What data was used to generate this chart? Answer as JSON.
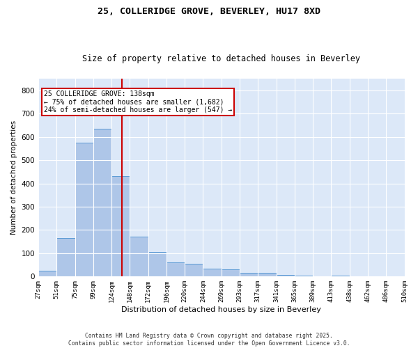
{
  "title": "25, COLLERIDGE GROVE, BEVERLEY, HU17 8XD",
  "subtitle": "Size of property relative to detached houses in Beverley",
  "xlabel": "Distribution of detached houses by size in Beverley",
  "ylabel": "Number of detached properties",
  "bin_labels": [
    "27sqm",
    "51sqm",
    "75sqm",
    "99sqm",
    "124sqm",
    "148sqm",
    "172sqm",
    "196sqm",
    "220sqm",
    "244sqm",
    "269sqm",
    "293sqm",
    "317sqm",
    "341sqm",
    "365sqm",
    "389sqm",
    "413sqm",
    "438sqm",
    "462sqm",
    "486sqm",
    "510sqm"
  ],
  "bar_values": [
    25,
    165,
    575,
    635,
    430,
    170,
    105,
    60,
    55,
    35,
    30,
    15,
    15,
    8,
    3,
    0,
    3,
    0,
    0,
    2
  ],
  "bar_color": "#aec6e8",
  "bar_edge_color": "#5b9bd5",
  "vline_color": "#cc0000",
  "annotation_text": "25 COLLERIDGE GROVE: 138sqm\n← 75% of detached houses are smaller (1,682)\n24% of semi-detached houses are larger (547) →",
  "annotation_box_color": "#ffffff",
  "annotation_box_edge": "#cc0000",
  "ylim": [
    0,
    850
  ],
  "yticks": [
    0,
    100,
    200,
    300,
    400,
    500,
    600,
    700,
    800
  ],
  "bg_color": "#dce8f8",
  "footer_text": "Contains HM Land Registry data © Crown copyright and database right 2025.\nContains public sector information licensed under the Open Government Licence v3.0.",
  "title_fontsize": 9.5,
  "subtitle_fontsize": 8.5
}
